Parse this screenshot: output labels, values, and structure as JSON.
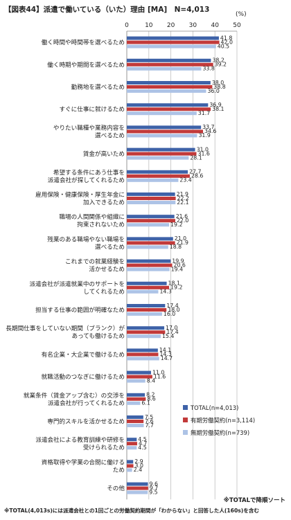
{
  "chart_data": {
    "type": "bar",
    "orientation": "horizontal",
    "title": "【図表44】派遣で働いている（いた）理由 [MA]　N=4,013",
    "unit": "(%)",
    "xlim": [
      0,
      50
    ],
    "ticks": [
      0,
      10,
      20,
      30,
      40,
      50
    ],
    "grid": true,
    "legend_position": "bottom-right",
    "categories": [
      [
        "働く時間や時間帯を選べるため"
      ],
      [
        "働く時期や期間を選べるため"
      ],
      [
        "勤務地を選べるため"
      ],
      [
        "すぐに仕事に就けるため"
      ],
      [
        "やりたい職種や業務内容を",
        "選べるため"
      ],
      [
        "賃金が高いため"
      ],
      [
        "希望する条件にあう仕事を",
        "派遣会社が探してくれるため"
      ],
      [
        "雇用保険・健康保険・厚生年金に",
        "加入できるため"
      ],
      [
        "職場の人間関係や組織に",
        "拘束されないため"
      ],
      [
        "残業のある職場やない職場を",
        "選べるため"
      ],
      [
        "これまでの就業経験を",
        "活かせるため"
      ],
      [
        "派遣会社が派遣就業中のサポートを",
        "してくれるため"
      ],
      [
        "担当する仕事の範囲が明確なため"
      ],
      [
        "長期間仕事をしていない期間（ブランク）が",
        "あっても働けるため"
      ],
      [
        "有名企業・大企業で働けるため"
      ],
      [
        "就職活動のつなぎに働けるため"
      ],
      [
        "就業条件（賃金アップ含む）の交渉を",
        "派遣会社が行ってくれるため"
      ],
      [
        "専門的スキルを活かせるため"
      ],
      [
        "派遣会社による教育訓練や研修を",
        "受けられるため"
      ],
      [
        "資格取得や学業の合間に働ける",
        "ため"
      ],
      [
        "その他"
      ]
    ],
    "series": [
      {
        "name": "TOTAL(n=4,013)",
        "color": "#3e62a8",
        "values": [
          41.8,
          38.2,
          38.0,
          36.9,
          33.7,
          31.0,
          27.7,
          21.9,
          21.6,
          21.0,
          19.9,
          18.1,
          17.4,
          17.0,
          14.1,
          11.0,
          8.2,
          7.5,
          4.5,
          2.9,
          9.6
        ]
      },
      {
        "name": "有期労働契約(n=3,114)",
        "color": "#c23a3a",
        "values": [
          42.0,
          39.2,
          38.8,
          38.1,
          34.6,
          31.6,
          28.6,
          22.2,
          22.0,
          21.9,
          20.6,
          19.2,
          18.0,
          17.4,
          14.3,
          11.6,
          8.6,
          7.6,
          4.7,
          3.0,
          9.7
        ]
      },
      {
        "name": "無期労働契約(n=739)",
        "color": "#adc3e6",
        "values": [
          40.5,
          33.8,
          36.0,
          31.7,
          31.9,
          28.1,
          23.4,
          22.1,
          19.2,
          18.8,
          19.4,
          14.3,
          16.0,
          15.4,
          14.7,
          8.4,
          6.1,
          7.7,
          4.5,
          2.4,
          9.5
        ]
      }
    ]
  },
  "footnotes": {
    "sort_note": "※TOTALで降順ソート",
    "total_note": "※TOTAL(4,013s)には派遣会社との1回ごとの労働契約期間が「わからない」と回答した人(160s)を含む"
  }
}
